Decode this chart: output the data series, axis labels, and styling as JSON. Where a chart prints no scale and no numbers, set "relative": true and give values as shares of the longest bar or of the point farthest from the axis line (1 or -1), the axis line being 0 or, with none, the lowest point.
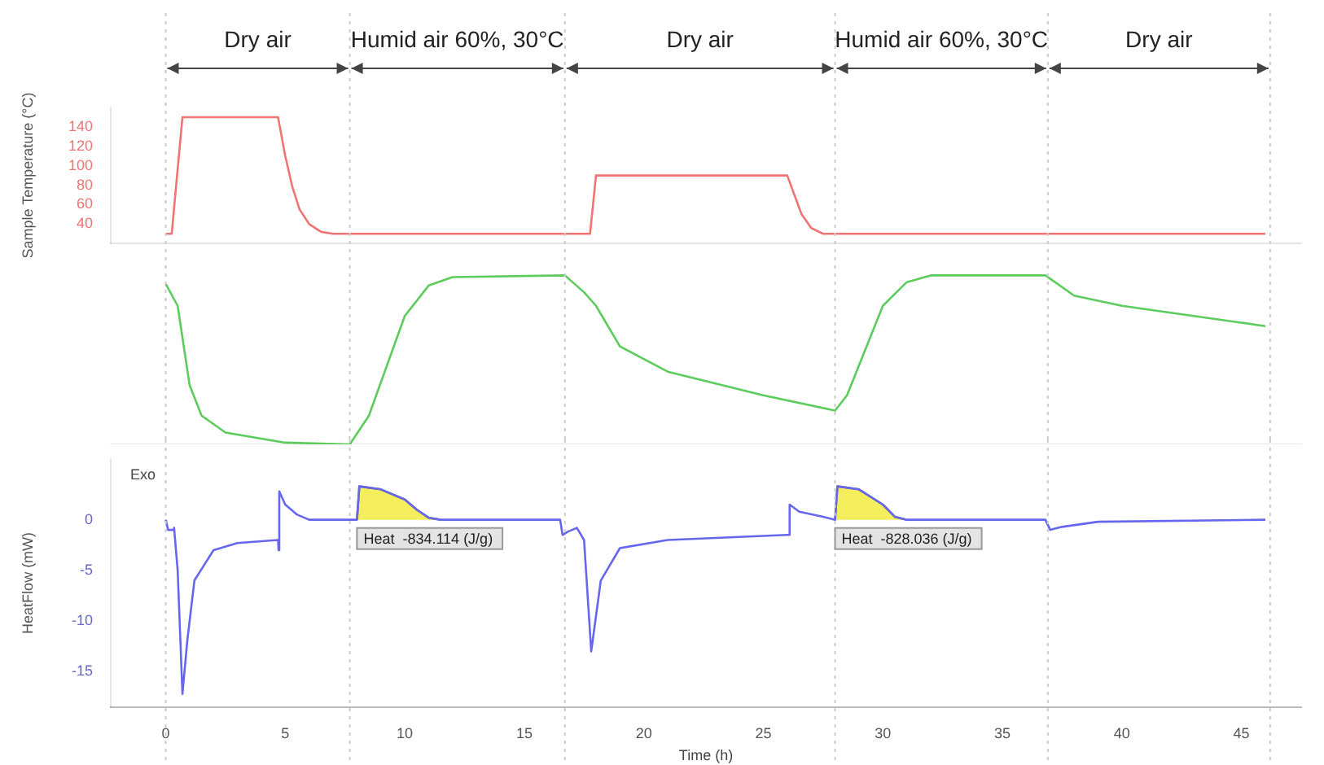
{
  "chart_data": [
    {
      "type": "line",
      "ylabel": "Sample Temperature (°C)",
      "xlim": [
        -2.3,
        47.5
      ],
      "ylim": [
        20,
        160
      ],
      "yticks": [
        40,
        60,
        80,
        100,
        120,
        140
      ],
      "tick_labels": "y",
      "grid": false,
      "annotations": [
        "Dry air",
        "Humid air 60%, 30°C",
        "Dry air",
        "Humid air 60%, 30°C",
        "Dry air"
      ],
      "ref_lines": [
        {
          "axis": "x",
          "value": 0,
          "color": "#cccccc",
          "line_style": "dotted"
        },
        {
          "axis": "x",
          "value": 7.7,
          "color": "#cccccc",
          "line_style": "dotted"
        },
        {
          "axis": "x",
          "value": 16.7,
          "color": "#cccccc",
          "line_style": "dotted"
        },
        {
          "axis": "x",
          "value": 28,
          "color": "#cccccc",
          "line_style": "dotted"
        },
        {
          "axis": "x",
          "value": 36.9,
          "color": "#cccccc",
          "line_style": "dotted"
        },
        {
          "axis": "x",
          "value": 46.2,
          "color": "#cccccc",
          "line_style": "dotted"
        }
      ],
      "series": [
        {
          "color": "#f07474",
          "x": [
            0,
            0.25,
            0.7,
            4.7,
            5.0,
            5.3,
            5.6,
            6.0,
            6.5,
            7,
            17.75,
            18.0,
            26.0,
            26.3,
            26.6,
            27.0,
            27.5,
            46
          ],
          "values": [
            30,
            30,
            150,
            150,
            110,
            78,
            55,
            40,
            32,
            30,
            30,
            90,
            90,
            70,
            50,
            36,
            30,
            30
          ]
        }
      ]
    },
    {
      "type": "line",
      "relative": true,
      "xlim": [
        -2.3,
        47.5
      ],
      "tick_labels": false,
      "grid": false,
      "ref_lines": [
        {
          "axis": "x",
          "value": 0,
          "color": "#cccccc",
          "line_style": "dotted"
        },
        {
          "axis": "x",
          "value": 7.7,
          "color": "#cccccc",
          "line_style": "dotted"
        },
        {
          "axis": "x",
          "value": 16.7,
          "color": "#cccccc",
          "line_style": "dotted"
        },
        {
          "axis": "x",
          "value": 28,
          "color": "#cccccc",
          "line_style": "dotted"
        },
        {
          "axis": "x",
          "value": 36.9,
          "color": "#cccccc",
          "line_style": "dotted"
        },
        {
          "axis": "x",
          "value": 46.2,
          "color": "#cccccc",
          "line_style": "dotted"
        }
      ],
      "series": [
        {
          "color": "#5ccc5c",
          "x": [
            0,
            0.5,
            1,
            1.5,
            2.5,
            5,
            7.7,
            8.5,
            10,
            11,
            12,
            16.7,
            17.5,
            18,
            19,
            21,
            25,
            28,
            28.5,
            30,
            31,
            32,
            36.8,
            38,
            40,
            43,
            46
          ],
          "values": [
            0.95,
            0.82,
            0.35,
            0.17,
            0.07,
            0.01,
            0,
            0.17,
            0.76,
            0.94,
            0.99,
            1,
            0.9,
            0.82,
            0.58,
            0.43,
            0.29,
            0.2,
            0.29,
            0.82,
            0.96,
            1,
            1,
            0.88,
            0.82,
            0.76,
            0.7
          ]
        }
      ]
    },
    {
      "type": "line",
      "xlabel": "Time (h)",
      "ylabel": "HeatFlow (mW)",
      "xlim": [
        -2.3,
        47.5
      ],
      "xticks": [
        0,
        5,
        10,
        15,
        20,
        25,
        30,
        35,
        40,
        45
      ],
      "ylim": [
        -18.5,
        6
      ],
      "yticks": [
        -15,
        -10,
        -5,
        0
      ],
      "grid": false,
      "annotations": [
        "Exo",
        {
          "text": "Heat  -834.114 (J/g)",
          "x": 8,
          "y": 0
        },
        {
          "text": "Heat  -828.036 (J/g)",
          "x": 28,
          "y": 0
        }
      ],
      "ref_lines": [
        {
          "axis": "x",
          "value": 0,
          "color": "#cccccc",
          "line_style": "dotted"
        },
        {
          "axis": "x",
          "value": 7.7,
          "color": "#cccccc",
          "line_style": "dotted"
        },
        {
          "axis": "x",
          "value": 16.7,
          "color": "#cccccc",
          "line_style": "dotted"
        },
        {
          "axis": "x",
          "value": 28,
          "color": "#cccccc",
          "line_style": "dotted"
        },
        {
          "axis": "x",
          "value": 36.9,
          "color": "#cccccc",
          "line_style": "dotted"
        },
        {
          "axis": "x",
          "value": 46.2,
          "color": "#cccccc",
          "line_style": "dotted"
        }
      ],
      "series": [
        {
          "type": "area",
          "color": "#f5ee5c",
          "x": [
            8,
            8.1,
            9,
            10,
            10.5,
            11,
            11.5
          ],
          "values": [
            0,
            3.3,
            3.0,
            2.0,
            1.0,
            0.2,
            0
          ]
        },
        {
          "type": "area",
          "color": "#f5ee5c",
          "x": [
            28,
            28.1,
            29,
            30,
            30.5,
            31
          ],
          "values": [
            0,
            3.3,
            3.0,
            1.5,
            0.3,
            0
          ]
        },
        {
          "color": "#6666ee",
          "x": [
            0,
            0.1,
            0.3,
            0.35,
            0.5,
            0.7,
            0.9,
            1.2,
            2,
            3,
            4.7,
            4.72,
            4.75,
            5,
            5.5,
            6,
            7.7,
            8,
            8.1,
            9,
            10,
            10.5,
            11,
            11.5,
            16.5,
            16.6,
            16.8,
            17.2,
            17.5,
            17.8,
            18.2,
            19,
            21,
            26,
            26.05,
            26.1,
            26.5,
            27.5,
            28,
            28.1,
            29,
            30,
            30.5,
            31,
            36.8,
            37,
            37.5,
            39,
            46
          ],
          "values": [
            0,
            -1,
            -1,
            -0.8,
            -5,
            -17.2,
            -12,
            -6,
            -3,
            -2.3,
            -2,
            -3,
            2.8,
            1.5,
            0.5,
            0,
            0,
            0,
            3.3,
            3.0,
            2.0,
            1.0,
            0.2,
            0,
            0,
            -1.5,
            -1.2,
            -0.8,
            -2,
            -13,
            -6,
            -2.8,
            -2,
            -1.5,
            -1.5,
            1.5,
            0.8,
            0.3,
            0,
            3.3,
            3.0,
            1.5,
            0.3,
            0,
            0,
            -1,
            -0.7,
            -0.2,
            0
          ]
        }
      ]
    }
  ]
}
